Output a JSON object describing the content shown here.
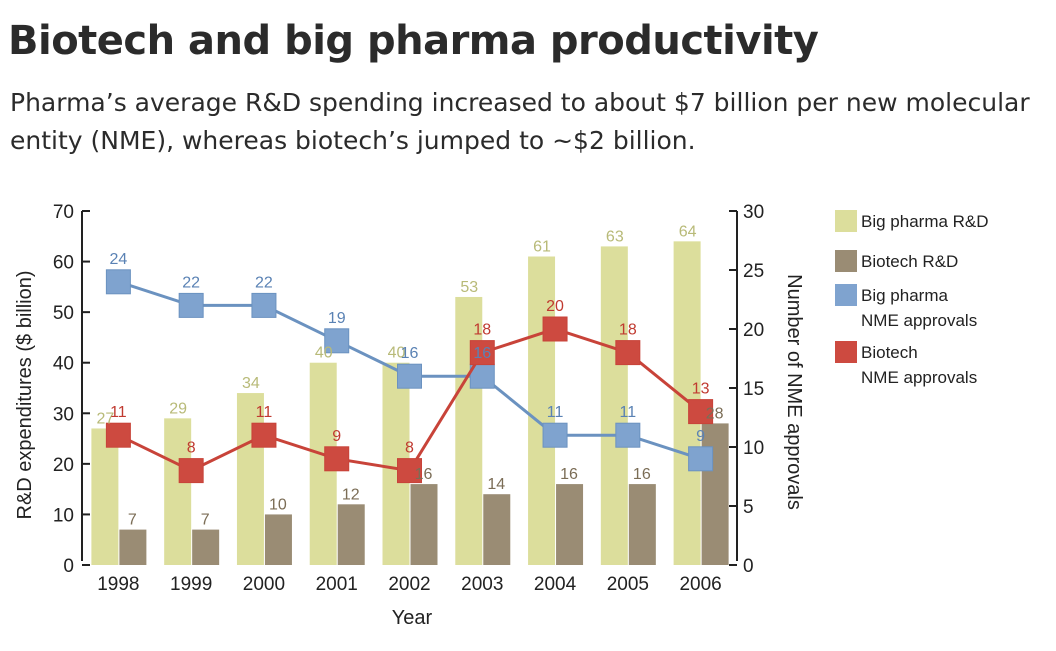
{
  "title": "Biotech and big pharma productivity",
  "subtitle": "Pharma’s average R&D spending increased to about $7 billion per new molecular entity (NME), whereas biotech’s jumped to ~$2 billion.",
  "colors": {
    "big_pharma_rd": "#dcde9c",
    "biotech_rd": "#9a8c74",
    "big_pharma_nme": "#7fa3cf",
    "biotech_nme": "#cd4a40",
    "big_pharma_line": "#6b92c0",
    "biotech_line": "#c84339"
  },
  "chart_data": {
    "type": "bar+line",
    "title": "",
    "xlabel": "Year",
    "ylabel": "R&D expenditures ($ billion)",
    "y2label": "Number of NME approvals",
    "categories": [
      "1998",
      "1999",
      "2000",
      "2001",
      "2002",
      "2003",
      "2004",
      "2005",
      "2006"
    ],
    "ylim": [
      0,
      70
    ],
    "yticks": [
      0,
      10,
      20,
      30,
      40,
      50,
      60,
      70
    ],
    "y2lim": [
      0,
      30
    ],
    "y2ticks": [
      0,
      5,
      10,
      15,
      20,
      25,
      30
    ],
    "legend_position": "right",
    "grid": false,
    "series": [
      {
        "name": "Big pharma R&D",
        "type": "bar",
        "axis": "left",
        "values": [
          27,
          29,
          34,
          40,
          40,
          53,
          61,
          63,
          64
        ]
      },
      {
        "name": "Biotech R&D",
        "type": "bar",
        "axis": "left",
        "values": [
          7,
          7,
          10,
          12,
          16,
          14,
          16,
          16,
          28
        ]
      },
      {
        "name": "Big pharma NME approvals",
        "type": "line",
        "axis": "right",
        "values": [
          24,
          22,
          22,
          19,
          16,
          16,
          11,
          11,
          9
        ]
      },
      {
        "name": "Biotech NME approvals",
        "type": "line",
        "axis": "right",
        "values": [
          11,
          8,
          11,
          9,
          8,
          18,
          20,
          18,
          13
        ]
      }
    ],
    "legend": [
      {
        "label_lines": [
          "Big pharma R&D"
        ],
        "color_key": "big_pharma_rd",
        "icon": "square-swatch"
      },
      {
        "label_lines": [
          "Biotech R&D"
        ],
        "color_key": "biotech_rd",
        "icon": "square-swatch"
      },
      {
        "label_lines": [
          "Big pharma",
          "NME approvals"
        ],
        "color_key": "big_pharma_nme",
        "icon": "square-swatch"
      },
      {
        "label_lines": [
          "Biotech",
          "NME approvals"
        ],
        "color_key": "biotech_nme",
        "icon": "square-swatch"
      }
    ]
  }
}
